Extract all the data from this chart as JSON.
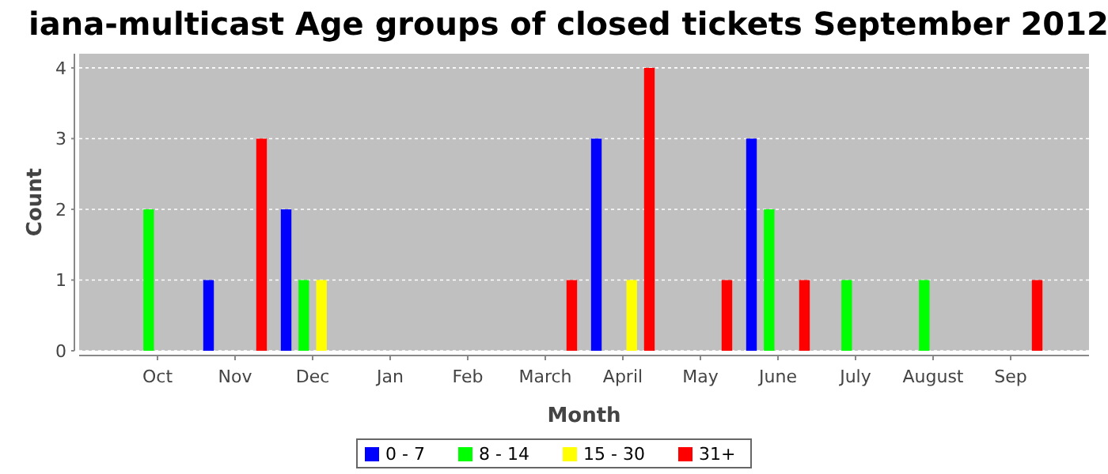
{
  "chart_data": {
    "type": "bar",
    "title": "iana-multicast Age groups of closed tickets September 2012",
    "xlabel": "Month",
    "ylabel": "Count",
    "categories": [
      "Oct",
      "Nov",
      "Dec",
      "Jan",
      "Feb",
      "March",
      "April",
      "May",
      "June",
      "July",
      "August",
      "Sep"
    ],
    "series": [
      {
        "name": "0 - 7",
        "color": "#0000ff",
        "values": [
          0,
          1,
          2,
          0,
          0,
          0,
          3,
          0,
          3,
          0,
          0,
          0
        ]
      },
      {
        "name": "8 - 14",
        "color": "#00ff00",
        "values": [
          2,
          0,
          1,
          0,
          0,
          0,
          0,
          0,
          2,
          1,
          1,
          0
        ]
      },
      {
        "name": "15 - 30",
        "color": "#ffff00",
        "values": [
          0,
          0,
          1,
          0,
          0,
          0,
          1,
          0,
          0,
          0,
          0,
          0
        ]
      },
      {
        "name": "31+",
        "color": "#ff0000",
        "values": [
          0,
          3,
          0,
          0,
          0,
          1,
          4,
          1,
          1,
          0,
          0,
          1
        ]
      }
    ],
    "ylim": [
      0,
      4.2
    ],
    "yticks": [
      0,
      1,
      2,
      3,
      4
    ],
    "grid": "y",
    "legend": "bottom"
  }
}
